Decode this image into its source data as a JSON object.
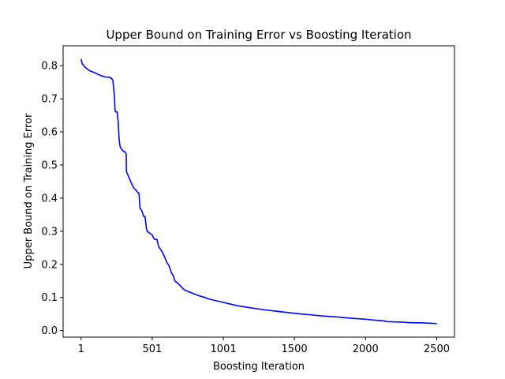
{
  "chart_data": {
    "type": "line",
    "title": "Upper Bound on Training Error vs Boosting Iteration",
    "xlabel": "Boosting Iteration",
    "ylabel": "Upper Bound on Training Error",
    "xlim": [
      -125,
      2625
    ],
    "ylim": [
      -0.02,
      0.86
    ],
    "xticks": [
      1,
      501,
      1001,
      1500,
      2000,
      2500
    ],
    "xtick_labels": [
      "1",
      "501",
      "1001",
      "1500",
      "2000",
      "2500"
    ],
    "yticks": [
      0.0,
      0.1,
      0.2,
      0.3,
      0.4,
      0.5,
      0.6,
      0.7,
      0.8
    ],
    "ytick_labels": [
      "0.0",
      "0.1",
      "0.2",
      "0.3",
      "0.4",
      "0.5",
      "0.6",
      "0.7",
      "0.8"
    ],
    "grid": false,
    "legend": "none",
    "series": [
      {
        "color": "#0000ff",
        "x": [
          1,
          10,
          30,
          60,
          100,
          140,
          180,
          200,
          215,
          225,
          235,
          240,
          245,
          255,
          262,
          268,
          272,
          276,
          282,
          292,
          302,
          310,
          318,
          320,
          330,
          345,
          360,
          372,
          385,
          395,
          402,
          408,
          415,
          430,
          440,
          450,
          460,
          465,
          480,
          500,
          510,
          520,
          535,
          545,
          560,
          575,
          590,
          605,
          620,
          635,
          650,
          660,
          675,
          700,
          720,
          740,
          770,
          800,
          830,
          870,
          900,
          950,
          1000,
          1050,
          1100,
          1200,
          1300,
          1400,
          1500,
          1600,
          1700,
          1800,
          1900,
          2000,
          2050,
          2100,
          2130,
          2150,
          2200,
          2280,
          2300,
          2400,
          2500
        ],
        "values": [
          0.82,
          0.805,
          0.795,
          0.785,
          0.778,
          0.77,
          0.765,
          0.765,
          0.762,
          0.755,
          0.71,
          0.665,
          0.66,
          0.66,
          0.63,
          0.58,
          0.565,
          0.555,
          0.55,
          0.545,
          0.54,
          0.54,
          0.535,
          0.48,
          0.47,
          0.455,
          0.44,
          0.43,
          0.425,
          0.42,
          0.415,
          0.415,
          0.37,
          0.36,
          0.345,
          0.345,
          0.31,
          0.3,
          0.295,
          0.29,
          0.28,
          0.275,
          0.275,
          0.255,
          0.245,
          0.235,
          0.22,
          0.205,
          0.195,
          0.175,
          0.165,
          0.15,
          0.145,
          0.135,
          0.125,
          0.12,
          0.115,
          0.11,
          0.105,
          0.1,
          0.095,
          0.09,
          0.085,
          0.08,
          0.075,
          0.068,
          0.062,
          0.057,
          0.052,
          0.048,
          0.044,
          0.041,
          0.037,
          0.034,
          0.032,
          0.03,
          0.029,
          0.027,
          0.026,
          0.025,
          0.024,
          0.023,
          0.021
        ]
      }
    ]
  }
}
